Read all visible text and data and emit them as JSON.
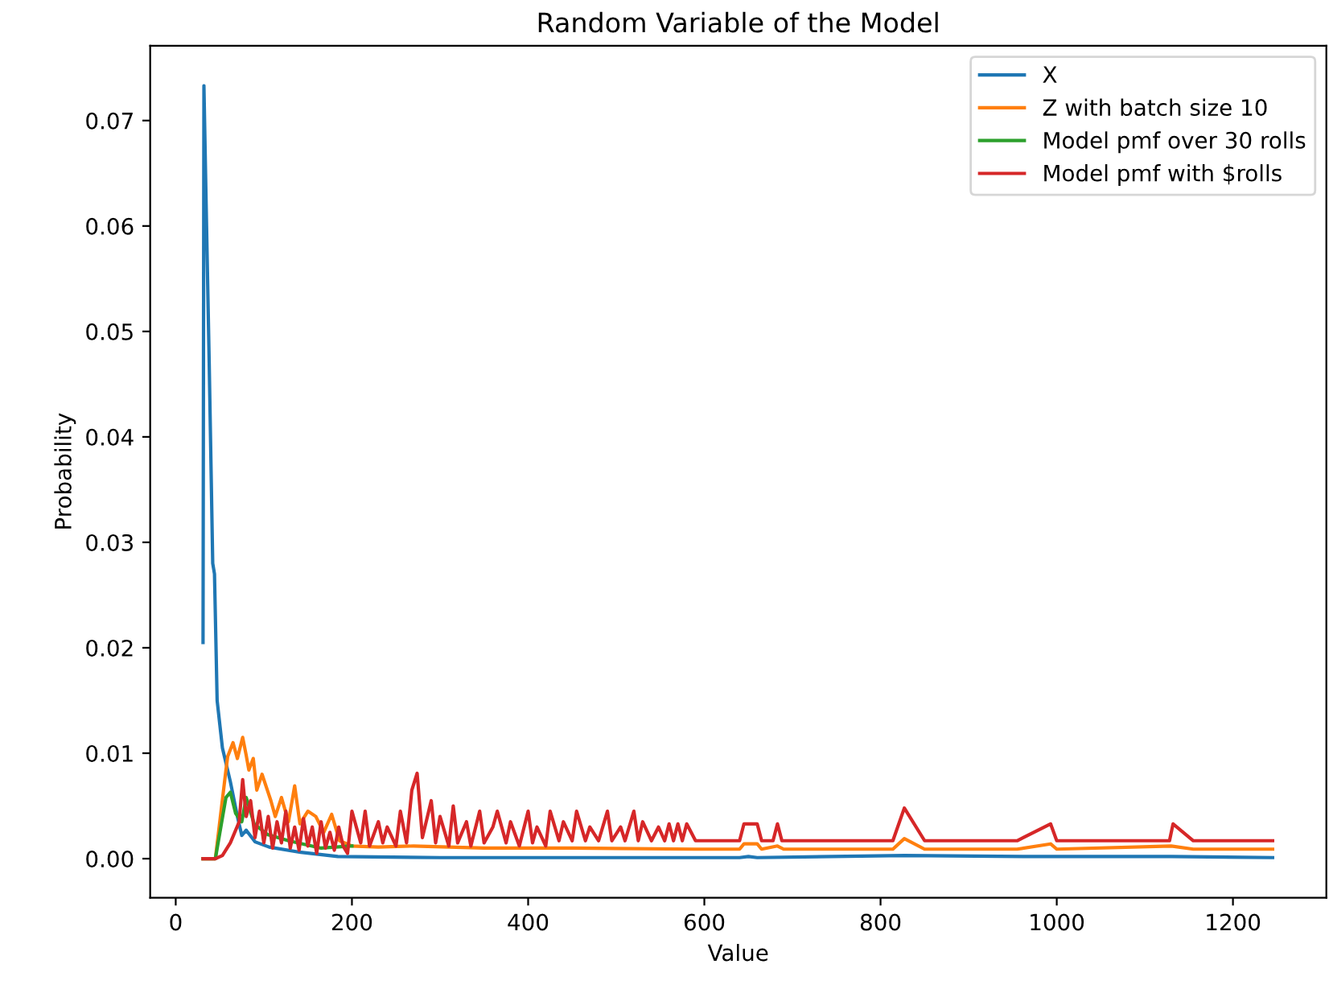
{
  "chart_data": {
    "type": "line",
    "title": "Random Variable of the Model",
    "xlabel": "Value",
    "ylabel": "Probability",
    "xlim": [
      -29,
      1306
    ],
    "ylim": [
      -0.0037,
      0.0771
    ],
    "xticks": [
      0,
      200,
      400,
      600,
      800,
      1000,
      1200
    ],
    "yticks": [
      {
        "value": 0,
        "label": "0.00"
      },
      {
        "value": 0.01,
        "label": "0.01"
      },
      {
        "value": 0.02,
        "label": "0.02"
      },
      {
        "value": 0.03,
        "label": "0.03"
      },
      {
        "value": 0.04,
        "label": "0.04"
      },
      {
        "value": 0.05,
        "label": "0.05"
      },
      {
        "value": 0.06,
        "label": "0.06"
      },
      {
        "value": 0.07,
        "label": "0.07"
      }
    ],
    "grid": false,
    "legend": "top right",
    "series": [
      {
        "name": "X",
        "color": "#1f77b4",
        "x": [
          31,
          32,
          35,
          38,
          42,
          44,
          47,
          53,
          62,
          70,
          75,
          80,
          90,
          106,
          142,
          184,
          300,
          640,
          650,
          660,
          827,
          975,
          1130,
          1245
        ],
        "values": [
          0.0205,
          0.0733,
          0.06,
          0.047,
          0.028,
          0.027,
          0.015,
          0.0105,
          0.0073,
          0.004,
          0.0022,
          0.0027,
          0.0016,
          0.0011,
          0.0006,
          0.0002,
          0.0001,
          0.0001,
          0.0002,
          0.0001,
          0.0003,
          0.0002,
          0.0002,
          0.0001
        ]
      },
      {
        "name": "Z with batch size 10",
        "color": "#ff7f0e",
        "x": [
          31,
          45,
          57,
          59,
          65,
          70,
          76,
          80,
          83,
          88,
          92,
          98,
          104,
          108,
          113,
          120,
          128,
          135,
          141,
          150,
          159,
          168,
          177,
          186,
          200,
          230,
          270,
          350,
          450,
          590,
          640,
          645,
          660,
          665,
          683,
          690,
          814,
          827,
          850,
          955,
          993,
          1000,
          1130,
          1155,
          1245
        ],
        "values": [
          0,
          0,
          0.0084,
          0.0097,
          0.011,
          0.0095,
          0.0115,
          0.0098,
          0.0084,
          0.0095,
          0.0065,
          0.008,
          0.0065,
          0.0055,
          0.004,
          0.0058,
          0.0035,
          0.0069,
          0.0033,
          0.0045,
          0.004,
          0.0025,
          0.0042,
          0.0017,
          0.0012,
          0.0011,
          0.0012,
          0.001,
          0.001,
          0.0009,
          0.0009,
          0.0014,
          0.0014,
          0.0009,
          0.0012,
          0.0009,
          0.0009,
          0.0019,
          0.0009,
          0.0009,
          0.0014,
          0.0009,
          0.0012,
          0.0009,
          0.0009
        ]
      },
      {
        "name": "Model pmf over 30 rolls",
        "color": "#2ca02c",
        "x": [
          31,
          45,
          57,
          62,
          68,
          75,
          80,
          89,
          104,
          128,
          165,
          200
        ],
        "values": [
          0,
          0,
          0.0058,
          0.0063,
          0.0043,
          0.0035,
          0.0058,
          0.0033,
          0.0023,
          0.0017,
          0.001,
          0.0012
        ]
      },
      {
        "name": "Model pmf with $rolls",
        "color": "#d62728",
        "x": [
          31,
          45,
          53,
          62,
          72,
          76,
          80,
          85,
          90,
          95,
          100,
          105,
          110,
          115,
          120,
          125,
          130,
          135,
          140,
          145,
          150,
          155,
          160,
          165,
          170,
          175,
          180,
          185,
          190,
          195,
          200,
          210,
          215,
          220,
          230,
          235,
          240,
          250,
          255,
          262,
          268,
          274,
          280,
          290,
          295,
          300,
          310,
          315,
          320,
          330,
          335,
          345,
          350,
          360,
          365,
          375,
          380,
          390,
          400,
          405,
          410,
          420,
          425,
          435,
          440,
          450,
          455,
          465,
          470,
          480,
          490,
          495,
          505,
          510,
          520,
          525,
          530,
          540,
          548,
          555,
          560,
          565,
          570,
          575,
          580,
          590,
          640,
          645,
          660,
          665,
          678,
          683,
          688,
          814,
          827,
          850,
          955,
          993,
          1000,
          1128,
          1132,
          1155,
          1245
        ],
        "values": [
          0,
          0,
          0.0003,
          0.0015,
          0.0035,
          0.0075,
          0.004,
          0.0055,
          0.002,
          0.0045,
          0.0015,
          0.004,
          0.001,
          0.0035,
          0.0015,
          0.0045,
          0.001,
          0.003,
          0.0008,
          0.0038,
          0.0012,
          0.003,
          0.0005,
          0.0035,
          0.001,
          0.0025,
          0.0008,
          0.003,
          0.0012,
          0.0005,
          0.0045,
          0.0015,
          0.0045,
          0.0012,
          0.0035,
          0.0015,
          0.003,
          0.0012,
          0.0045,
          0.0015,
          0.0065,
          0.0081,
          0.002,
          0.0055,
          0.0015,
          0.004,
          0.0012,
          0.005,
          0.0015,
          0.0035,
          0.0012,
          0.0045,
          0.0015,
          0.003,
          0.0045,
          0.0015,
          0.0035,
          0.0012,
          0.0045,
          0.0015,
          0.003,
          0.0012,
          0.0045,
          0.0017,
          0.0035,
          0.0017,
          0.0045,
          0.0017,
          0.003,
          0.0017,
          0.0045,
          0.0017,
          0.003,
          0.0017,
          0.0045,
          0.0017,
          0.0035,
          0.0017,
          0.003,
          0.0017,
          0.0033,
          0.0017,
          0.0033,
          0.0017,
          0.0033,
          0.0017,
          0.0017,
          0.0033,
          0.0033,
          0.0017,
          0.0017,
          0.0033,
          0.0017,
          0.0017,
          0.0048,
          0.0017,
          0.0017,
          0.0033,
          0.0017,
          0.0017,
          0.0033,
          0.0017,
          0.0017
        ]
      }
    ]
  }
}
